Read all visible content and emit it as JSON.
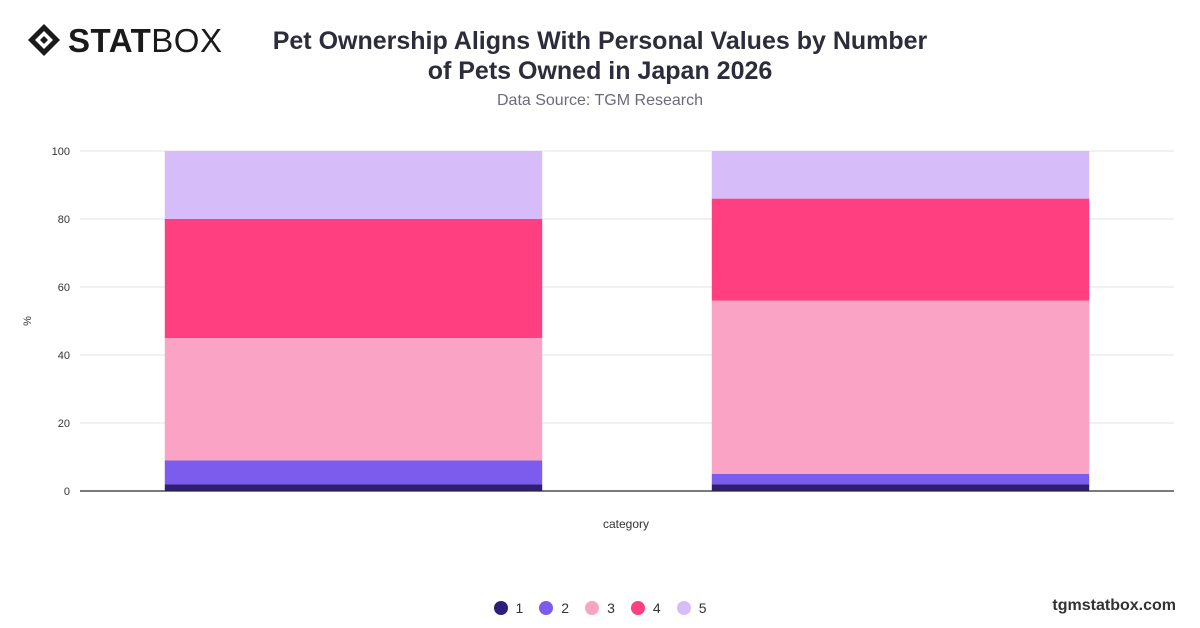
{
  "brand": {
    "logo_bold": "STAT",
    "logo_light": "BOX",
    "site": "tgmstatbox.com"
  },
  "header": {
    "title_line1": "Pet Ownership Aligns With Personal Values by Number",
    "title_line2": "of Pets Owned in Japan 2026",
    "source": "Data Source: TGM Research"
  },
  "chart_data": {
    "type": "bar",
    "stacked": true,
    "categories": [
      "",
      ""
    ],
    "series": [
      {
        "name": "1",
        "color": "#2e1d7a",
        "values": [
          2,
          2
        ]
      },
      {
        "name": "2",
        "color": "#7b5cec",
        "values": [
          7,
          3
        ]
      },
      {
        "name": "3",
        "color": "#fba3c4",
        "values": [
          36,
          51
        ]
      },
      {
        "name": "4",
        "color": "#ff3f7f",
        "values": [
          35,
          30
        ]
      },
      {
        "name": "5",
        "color": "#d6bdfa",
        "values": [
          20,
          14
        ]
      }
    ],
    "xlabel": "category",
    "ylabel": "%",
    "ylim": [
      0,
      100
    ],
    "yticks": [
      0,
      20,
      40,
      60,
      80,
      100
    ],
    "grid": true,
    "legend": "bottom-center"
  }
}
